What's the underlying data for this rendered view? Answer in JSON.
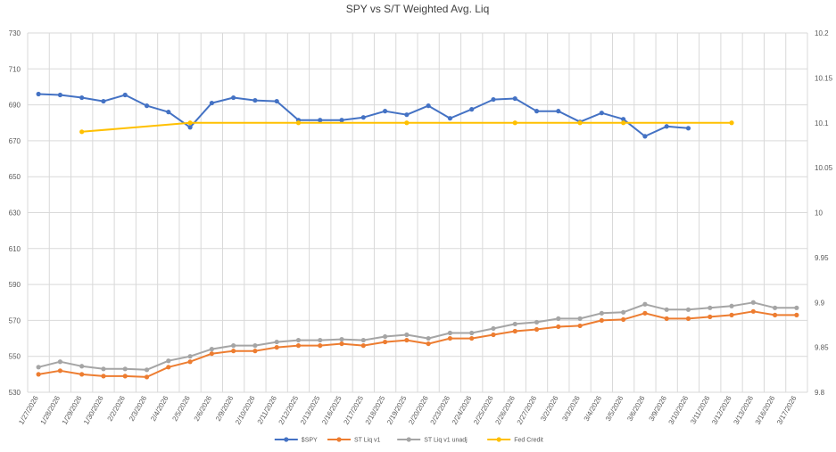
{
  "chart_data": {
    "type": "line",
    "title": "SPY vs S/T Weighted Avg. Liq",
    "categories": [
      "1/27/2026",
      "1/28/2026",
      "1/29/2026",
      "1/30/2026",
      "2/2/2026",
      "2/3/2026",
      "2/4/2026",
      "2/5/2026",
      "2/6/2026",
      "2/9/2026",
      "2/10/2026",
      "2/11/2026",
      "2/12/2025",
      "2/13/2025",
      "2/16/2025",
      "2/17/2025",
      "2/18/2025",
      "2/19/2025",
      "2/20/2026",
      "2/23/2026",
      "2/24/2026",
      "2/25/2026",
      "2/26/2026",
      "2/27/2026",
      "3/2/2026",
      "3/3/2026",
      "3/4/2026",
      "3/5/2026",
      "3/6/2026",
      "3/9/2026",
      "3/10/2026",
      "3/11/2026",
      "3/12/2026",
      "3/13/2026",
      "3/16/2026",
      "3/17/2026"
    ],
    "y_left": {
      "min": 530,
      "max": 730,
      "ticks": [
        "530",
        "550",
        "570",
        "590",
        "610",
        "630",
        "650",
        "670",
        "690",
        "710",
        "730"
      ]
    },
    "y_right": {
      "min": 9.8,
      "max": 10.2,
      "ticks": [
        "9.8",
        "9.85",
        "9.9",
        "9.95",
        "10",
        "10.05",
        "10.1",
        "10.15",
        "10.2"
      ]
    },
    "series": [
      {
        "name": "$SPY",
        "axis": "left",
        "color": "#4472c4",
        "values": [
          696,
          695.5,
          694,
          692,
          695.5,
          689.5,
          686,
          677.5,
          691,
          694,
          692.5,
          692,
          681.5,
          681.5,
          681.5,
          683,
          686.5,
          684.5,
          689.5,
          682.5,
          687.5,
          693,
          693.5,
          686.5,
          686.5,
          680.5,
          685.5,
          682,
          672.5,
          678,
          677,
          null,
          null,
          null,
          null,
          null
        ]
      },
      {
        "name": "ST Liq v1",
        "axis": "left",
        "color": "#ed7d31",
        "values": [
          540,
          542,
          540,
          539,
          539,
          538.5,
          544,
          547,
          551.5,
          553,
          553,
          555,
          556,
          556,
          557,
          556,
          558,
          559,
          557,
          560,
          560,
          562,
          564,
          565,
          566.5,
          567,
          570,
          570.5,
          574,
          571,
          571,
          572,
          573,
          575,
          573,
          573
        ]
      },
      {
        "name": "ST Liq v1 unadj",
        "axis": "left",
        "color": "#a5a5a5",
        "values": [
          544,
          547,
          544.5,
          543,
          543,
          542.5,
          547.5,
          550,
          554,
          556,
          556,
          558,
          559,
          559,
          559.5,
          559,
          561,
          562,
          560,
          563,
          563,
          565.5,
          568,
          569,
          571,
          571,
          574,
          574.5,
          579,
          576,
          576,
          577,
          578,
          580,
          577,
          577
        ]
      },
      {
        "name": "Fed Credit",
        "axis": "right",
        "color": "#ffc000",
        "values": [
          null,
          null,
          10.09,
          null,
          null,
          null,
          null,
          10.1,
          null,
          null,
          null,
          null,
          10.1,
          null,
          null,
          null,
          null,
          10.1,
          null,
          null,
          null,
          null,
          10.1,
          null,
          null,
          10.1,
          null,
          10.1,
          null,
          null,
          null,
          null,
          10.1,
          null,
          null,
          null
        ]
      }
    ],
    "legend_position": "bottom-center",
    "grid": true
  }
}
